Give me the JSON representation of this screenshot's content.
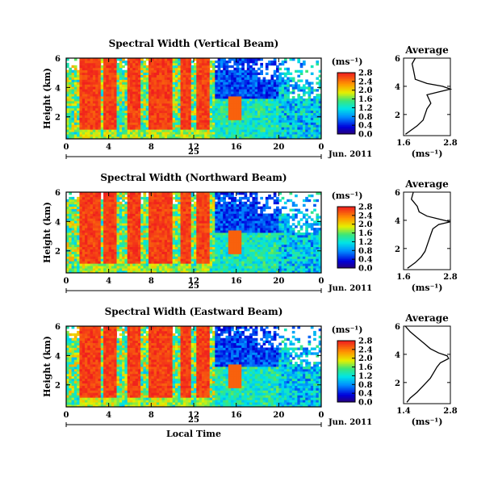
{
  "chart_data": [
    {
      "type": "heatmap",
      "title": "Spectral Width (Vertical Beam)",
      "xlabel": "",
      "ylabel": "Height (km)",
      "xticks": [
        "0",
        "4",
        "8",
        "12",
        "16",
        "20",
        "0"
      ],
      "yticks": [
        "6",
        "4",
        "2"
      ],
      "xlim": [
        0,
        24
      ],
      "ylim": [
        0.5,
        6.0
      ],
      "date_label": "25",
      "month_label": "Jun. 2011",
      "colorbar": {
        "unit": "(ms⁻¹)",
        "ticks": [
          "2.8",
          "2.4",
          "2.0",
          "1.6",
          "1.2",
          "0.8",
          "0.4",
          "0.0"
        ],
        "range": [
          0.0,
          2.8
        ]
      },
      "average": {
        "title": "Average",
        "xlabel": "(ms⁻¹)",
        "xticks": [
          "1.6",
          "2.8"
        ],
        "yticks": [
          "6",
          "4",
          "2"
        ],
        "xlim": [
          1.6,
          2.8
        ],
        "ylim": [
          0.5,
          6.0
        ],
        "profile": [
          [
            1.9,
            6.0
          ],
          [
            1.82,
            5.6
          ],
          [
            1.85,
            5.2
          ],
          [
            1.88,
            4.8
          ],
          [
            1.9,
            4.5
          ],
          [
            2.2,
            4.2
          ],
          [
            2.6,
            4.0
          ],
          [
            2.8,
            3.8
          ],
          [
            2.5,
            3.6
          ],
          [
            2.2,
            3.4
          ],
          [
            2.25,
            3.1
          ],
          [
            2.3,
            2.8
          ],
          [
            2.2,
            2.4
          ],
          [
            2.15,
            2.0
          ],
          [
            2.1,
            1.6
          ],
          [
            1.95,
            1.2
          ],
          [
            1.8,
            0.9
          ],
          [
            1.65,
            0.6
          ]
        ]
      }
    },
    {
      "type": "heatmap",
      "title": "Spectral Width (Northward Beam)",
      "xlabel": "",
      "ylabel": "Height (km)",
      "xticks": [
        "0",
        "4",
        "8",
        "12",
        "16",
        "20",
        "0"
      ],
      "yticks": [
        "6",
        "4",
        "2"
      ],
      "xlim": [
        0,
        24
      ],
      "ylim": [
        0.5,
        6.0
      ],
      "date_label": "25",
      "month_label": "Jun. 2011",
      "colorbar": {
        "unit": "(ms⁻¹)",
        "ticks": [
          "2.8",
          "2.4",
          "2.0",
          "1.6",
          "1.2",
          "0.8",
          "0.4",
          "0.0"
        ],
        "range": [
          0.0,
          2.8
        ]
      },
      "average": {
        "title": "Average",
        "xlabel": "(ms⁻¹)",
        "xticks": [
          "1.6",
          "2.8"
        ],
        "yticks": [
          "6",
          "4",
          "2"
        ],
        "xlim": [
          1.6,
          2.8
        ],
        "ylim": [
          0.5,
          6.0
        ],
        "profile": [
          [
            1.85,
            6.0
          ],
          [
            1.8,
            5.5
          ],
          [
            1.95,
            5.0
          ],
          [
            2.0,
            4.6
          ],
          [
            2.2,
            4.3
          ],
          [
            2.5,
            4.1
          ],
          [
            2.8,
            3.9
          ],
          [
            2.5,
            3.7
          ],
          [
            2.35,
            3.4
          ],
          [
            2.3,
            3.0
          ],
          [
            2.25,
            2.6
          ],
          [
            2.2,
            2.2
          ],
          [
            2.15,
            1.8
          ],
          [
            2.05,
            1.4
          ],
          [
            1.9,
            1.0
          ],
          [
            1.7,
            0.6
          ]
        ]
      }
    },
    {
      "type": "heatmap",
      "title": "Spectral Width (Eastward Beam)",
      "xlabel": "Local Time",
      "ylabel": "Height (km)",
      "xticks": [
        "0",
        "4",
        "8",
        "12",
        "16",
        "20",
        "0"
      ],
      "yticks": [
        "6",
        "4",
        "2"
      ],
      "xlim": [
        0,
        24
      ],
      "ylim": [
        0.5,
        6.0
      ],
      "date_label": "25",
      "month_label": "Jun. 2011",
      "colorbar": {
        "unit": "(ms⁻¹)",
        "ticks": [
          "2.8",
          "2.4",
          "2.0",
          "1.6",
          "1.2",
          "0.8",
          "0.4",
          "0.0"
        ],
        "range": [
          0.0,
          2.8
        ]
      },
      "average": {
        "title": "Average",
        "xlabel": "(ms⁻¹)",
        "xticks": [
          "1.4",
          "2.8"
        ],
        "yticks": [
          "6",
          "4",
          "2"
        ],
        "xlim": [
          1.4,
          2.8
        ],
        "ylim": [
          0.5,
          6.0
        ],
        "profile": [
          [
            1.45,
            6.0
          ],
          [
            1.6,
            5.6
          ],
          [
            1.8,
            5.2
          ],
          [
            2.0,
            4.8
          ],
          [
            2.2,
            4.4
          ],
          [
            2.45,
            4.1
          ],
          [
            2.7,
            3.9
          ],
          [
            2.75,
            3.7
          ],
          [
            2.5,
            3.4
          ],
          [
            2.4,
            3.1
          ],
          [
            2.3,
            2.7
          ],
          [
            2.2,
            2.3
          ],
          [
            2.0,
            1.8
          ],
          [
            1.8,
            1.3
          ],
          [
            1.6,
            0.9
          ],
          [
            1.5,
            0.6
          ]
        ]
      }
    }
  ]
}
